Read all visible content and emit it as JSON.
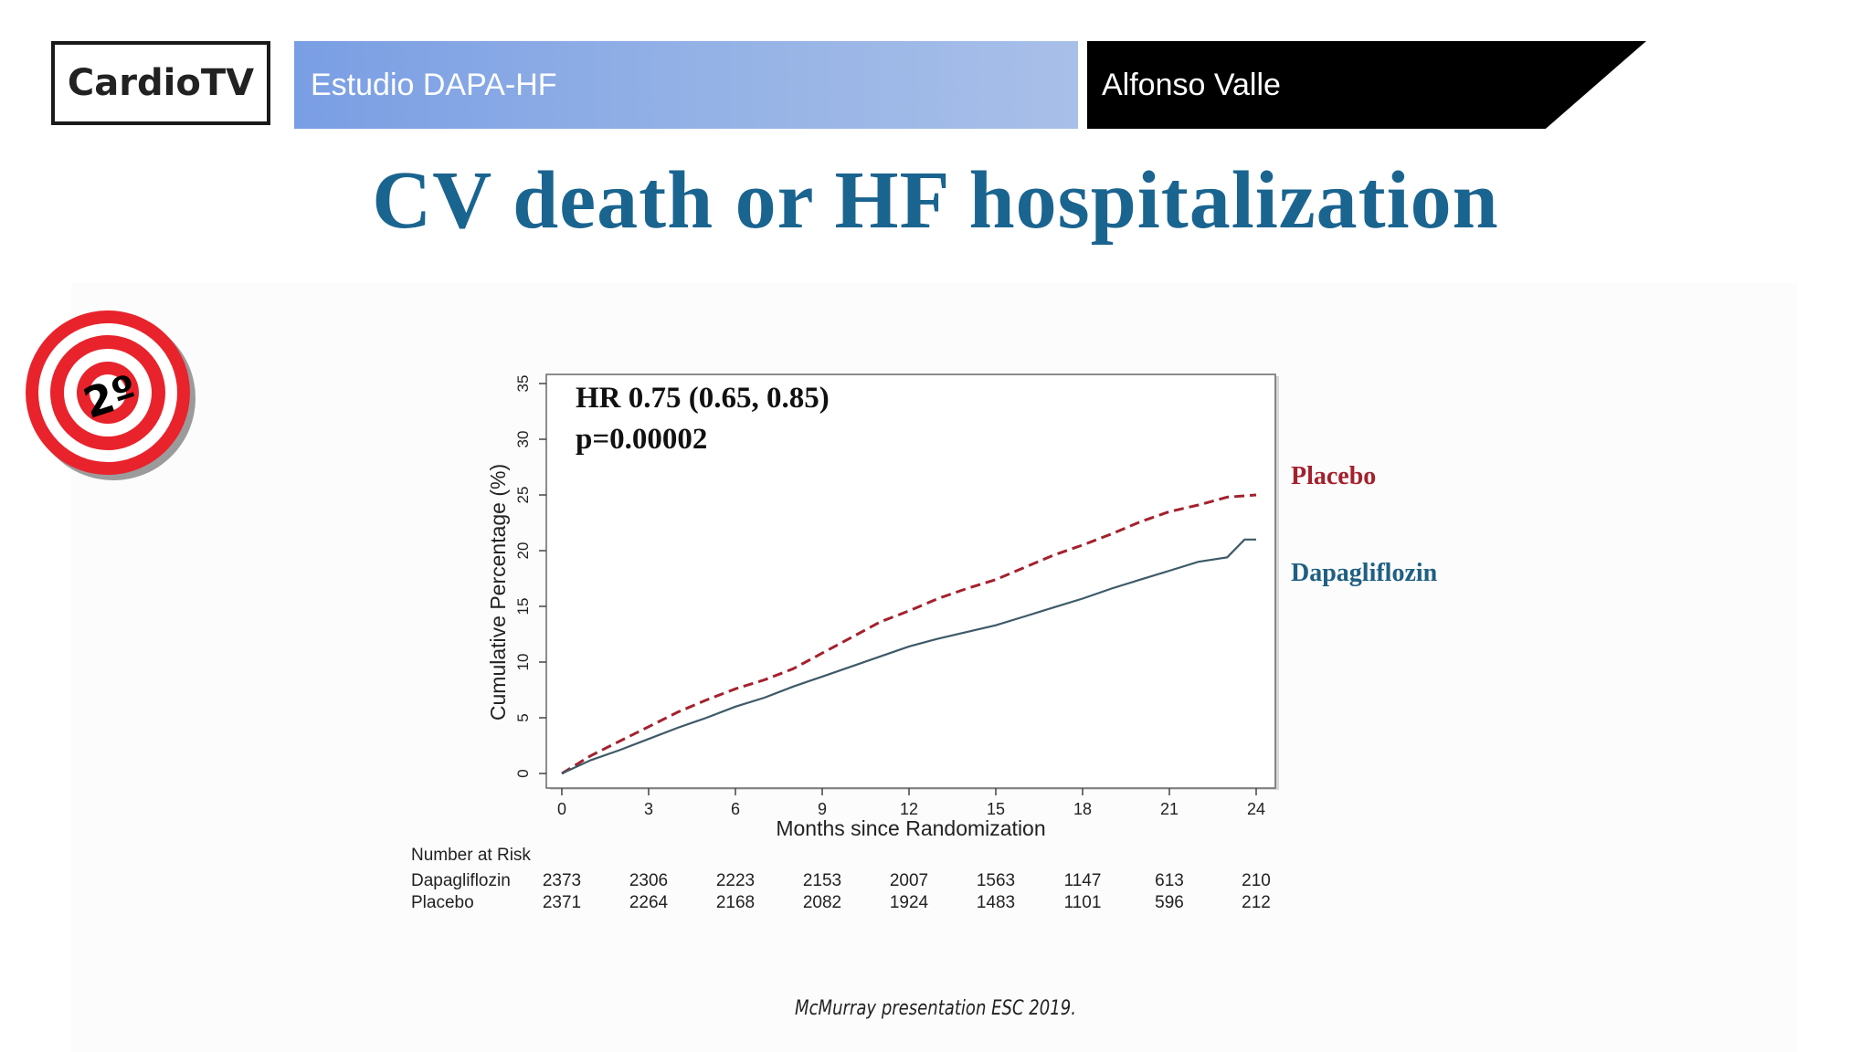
{
  "header": {
    "logo_text": "CardioTV",
    "study_label": "Estudio DAPA-HF",
    "presenter_name": "Alfonso Valle"
  },
  "slide_title": "CV death or HF hospitalization",
  "badge": {
    "icon": "target-icon",
    "label": "2º"
  },
  "chart_data": {
    "type": "line",
    "xlabel": "Months since Randomization",
    "ylabel": "Cumulative Percentage (%)",
    "xlim": [
      0,
      24
    ],
    "ylim": [
      0,
      35
    ],
    "xticks": [
      0,
      3,
      6,
      9,
      12,
      15,
      18,
      21,
      24
    ],
    "yticks": [
      0,
      5,
      10,
      15,
      20,
      25,
      30,
      35
    ],
    "annotations": [
      "HR 0.75 (0.65, 0.85)",
      "p=0.00002"
    ],
    "series": [
      {
        "name": "Placebo",
        "color": "#a3212d",
        "style": "dashed",
        "x": [
          0,
          1,
          2,
          3,
          4,
          5,
          6,
          7,
          8,
          9,
          10,
          11,
          12,
          13,
          14,
          15,
          16,
          17,
          18,
          19,
          20,
          21,
          22,
          23,
          24
        ],
        "y": [
          0,
          1.6,
          2.9,
          4.2,
          5.5,
          6.6,
          7.6,
          8.4,
          9.4,
          10.8,
          12.2,
          13.6,
          14.6,
          15.7,
          16.6,
          17.4,
          18.5,
          19.6,
          20.5,
          21.5,
          22.6,
          23.5,
          24.1,
          24.8,
          25.0
        ]
      },
      {
        "name": "Dapagliflozin",
        "color": "#3d5a68",
        "style": "solid",
        "x": [
          0,
          1,
          2,
          3,
          4,
          5,
          6,
          7,
          8,
          9,
          10,
          11,
          12,
          13,
          14,
          15,
          16,
          17,
          18,
          19,
          20,
          21,
          22,
          23,
          23.6,
          24
        ],
        "y": [
          0,
          1.2,
          2.1,
          3.1,
          4.1,
          5.0,
          6.0,
          6.8,
          7.8,
          8.7,
          9.6,
          10.5,
          11.4,
          12.1,
          12.7,
          13.3,
          14.1,
          14.9,
          15.7,
          16.6,
          17.4,
          18.2,
          19.0,
          19.4,
          21.0,
          21.0
        ]
      }
    ]
  },
  "risk_table": {
    "heading": "Number at Risk",
    "months": [
      0,
      3,
      6,
      9,
      12,
      15,
      18,
      21,
      24
    ],
    "rows": [
      {
        "label": "Dapagliflozin",
        "values": [
          "2373",
          "2306",
          "2223",
          "2153",
          "2007",
          "1563",
          "1147",
          "613",
          "210"
        ]
      },
      {
        "label": "Placebo",
        "values": [
          "2371",
          "2264",
          "2168",
          "2082",
          "1924",
          "1483",
          "1101",
          "596",
          "212"
        ]
      }
    ]
  },
  "footnote": "McMurray presentation ESC 2019."
}
